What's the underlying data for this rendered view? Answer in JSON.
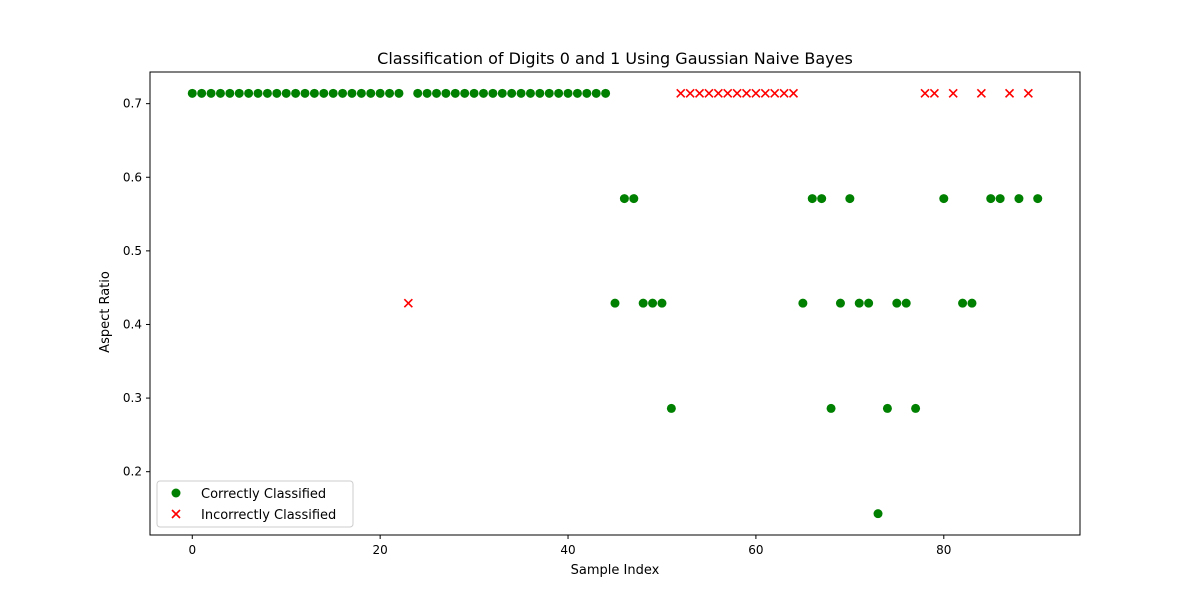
{
  "chart_data": {
    "type": "scatter",
    "title": "Classification of Digits 0 and 1 Using Gaussian Naive Bayes",
    "xlabel": "Sample Index",
    "ylabel": "Aspect Ratio",
    "xlim": [
      -4.5,
      94.5
    ],
    "ylim": [
      0.114,
      0.743
    ],
    "xticks": [
      0,
      20,
      40,
      60,
      80
    ],
    "yticks": [
      0.2,
      0.3,
      0.4,
      0.5,
      0.6,
      0.7
    ],
    "grid": false,
    "legend_position": "lower-left",
    "series": [
      {
        "name": "Correctly Classified",
        "marker": "circle",
        "color": "#008000",
        "points": [
          [
            0,
            0.714
          ],
          [
            1,
            0.714
          ],
          [
            2,
            0.714
          ],
          [
            3,
            0.714
          ],
          [
            4,
            0.714
          ],
          [
            5,
            0.714
          ],
          [
            6,
            0.714
          ],
          [
            7,
            0.714
          ],
          [
            8,
            0.714
          ],
          [
            9,
            0.714
          ],
          [
            10,
            0.714
          ],
          [
            11,
            0.714
          ],
          [
            12,
            0.714
          ],
          [
            13,
            0.714
          ],
          [
            14,
            0.714
          ],
          [
            15,
            0.714
          ],
          [
            16,
            0.714
          ],
          [
            17,
            0.714
          ],
          [
            18,
            0.714
          ],
          [
            19,
            0.714
          ],
          [
            20,
            0.714
          ],
          [
            21,
            0.714
          ],
          [
            22,
            0.714
          ],
          [
            24,
            0.714
          ],
          [
            25,
            0.714
          ],
          [
            26,
            0.714
          ],
          [
            27,
            0.714
          ],
          [
            28,
            0.714
          ],
          [
            29,
            0.714
          ],
          [
            30,
            0.714
          ],
          [
            31,
            0.714
          ],
          [
            32,
            0.714
          ],
          [
            33,
            0.714
          ],
          [
            34,
            0.714
          ],
          [
            35,
            0.714
          ],
          [
            36,
            0.714
          ],
          [
            37,
            0.714
          ],
          [
            38,
            0.714
          ],
          [
            39,
            0.714
          ],
          [
            40,
            0.714
          ],
          [
            41,
            0.714
          ],
          [
            42,
            0.714
          ],
          [
            43,
            0.714
          ],
          [
            44,
            0.714
          ],
          [
            45,
            0.429
          ],
          [
            46,
            0.571
          ],
          [
            47,
            0.571
          ],
          [
            48,
            0.429
          ],
          [
            49,
            0.429
          ],
          [
            50,
            0.429
          ],
          [
            51,
            0.286
          ],
          [
            65,
            0.429
          ],
          [
            66,
            0.571
          ],
          [
            67,
            0.571
          ],
          [
            68,
            0.286
          ],
          [
            69,
            0.429
          ],
          [
            70,
            0.571
          ],
          [
            71,
            0.429
          ],
          [
            72,
            0.429
          ],
          [
            73,
            0.143
          ],
          [
            74,
            0.286
          ],
          [
            75,
            0.429
          ],
          [
            76,
            0.429
          ],
          [
            77,
            0.286
          ],
          [
            80,
            0.571
          ],
          [
            82,
            0.429
          ],
          [
            83,
            0.429
          ],
          [
            85,
            0.571
          ],
          [
            86,
            0.571
          ],
          [
            88,
            0.571
          ],
          [
            90,
            0.571
          ]
        ]
      },
      {
        "name": "Incorrectly Classified",
        "marker": "x",
        "color": "#ff0000",
        "points": [
          [
            23,
            0.429
          ],
          [
            52,
            0.714
          ],
          [
            53,
            0.714
          ],
          [
            54,
            0.714
          ],
          [
            55,
            0.714
          ],
          [
            56,
            0.714
          ],
          [
            57,
            0.714
          ],
          [
            58,
            0.714
          ],
          [
            59,
            0.714
          ],
          [
            60,
            0.714
          ],
          [
            61,
            0.714
          ],
          [
            62,
            0.714
          ],
          [
            63,
            0.714
          ],
          [
            64,
            0.714
          ],
          [
            78,
            0.714
          ],
          [
            79,
            0.714
          ],
          [
            81,
            0.714
          ],
          [
            84,
            0.714
          ],
          [
            87,
            0.714
          ],
          [
            89,
            0.714
          ]
        ]
      }
    ]
  }
}
